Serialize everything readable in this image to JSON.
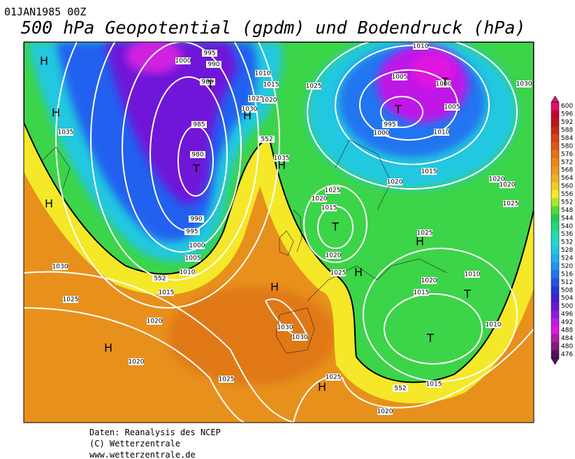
{
  "header": {
    "date": "01JAN1985 00Z",
    "title": "500 hPa Geopotential (gpdm) und Bodendruck (hPa)"
  },
  "colorbar": {
    "labels": [
      600,
      596,
      592,
      588,
      584,
      580,
      576,
      572,
      568,
      564,
      560,
      556,
      552,
      548,
      544,
      540,
      536,
      532,
      528,
      524,
      520,
      516,
      512,
      508,
      504,
      500,
      496,
      492,
      488,
      484,
      480,
      476
    ],
    "colors": [
      "#e0106a",
      "#c80030",
      "#b81818",
      "#c82818",
      "#d84018",
      "#e05810",
      "#e87010",
      "#f08418",
      "#f09820",
      "#f0b020",
      "#f0cc20",
      "#f8ec20",
      "#a8e828",
      "#58d838",
      "#20d050",
      "#20d878",
      "#20dca8",
      "#20d8d0",
      "#20c8e8",
      "#20b0f0",
      "#2094f0",
      "#2074f0",
      "#2054e8",
      "#2838d8",
      "#4020d0",
      "#6818d8",
      "#9018e0",
      "#c018e8",
      "#e018e0",
      "#b01ca8",
      "#801c80",
      "#58105a"
    ]
  },
  "map": {
    "pressure_labels": [
      "1000",
      "995",
      "990",
      "985",
      "1010",
      "1015",
      "1025",
      "1025",
      "1020",
      "1030",
      "985",
      "980",
      "990",
      "995",
      "1000",
      "1005",
      "1010",
      "1015",
      "1030",
      "1025",
      "1020",
      "1020",
      "1025",
      "1030",
      "1030",
      "1035",
      "1035",
      "552",
      "552",
      "552",
      "1005",
      "1000",
      "1005",
      "995",
      "1000",
      "1010",
      "1015",
      "1020",
      "1010",
      "1030",
      "1020",
      "1020",
      "1025",
      "1025",
      "1020",
      "1015",
      "1025",
      "1020",
      "1025",
      "1020",
      "1015",
      "1010",
      "1010",
      "1015",
      "1020",
      "1025"
    ],
    "highs_lows": [
      "H",
      "H",
      "H",
      "H",
      "H",
      "H",
      "H",
      "H",
      "H",
      "H",
      "T",
      "T",
      "T",
      "T",
      "T",
      "T",
      "T"
    ]
  },
  "footer": [
    "Daten: Reanalysis des NCEP",
    "(C) Wetterzentrale",
    "www.wetterzentrale.de"
  ]
}
